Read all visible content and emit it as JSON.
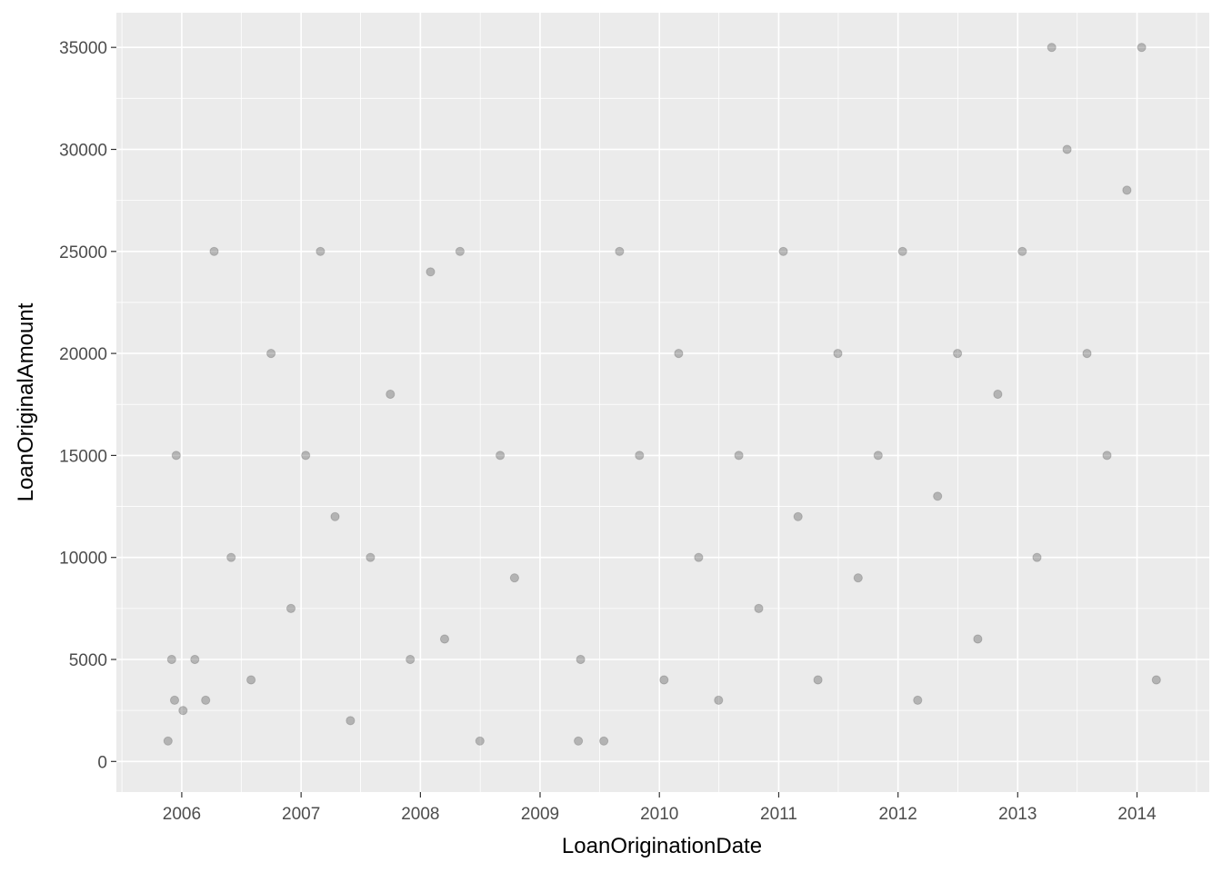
{
  "chart_data": {
    "type": "scatter",
    "title": "",
    "xlabel": "LoanOriginationDate",
    "ylabel": "LoanOriginalAmount",
    "x_type": "date",
    "xlim": [
      "2005-06-15",
      "2014-08-10"
    ],
    "ylim": [
      -1500,
      36700
    ],
    "x_ticks": [
      "2006",
      "2007",
      "2008",
      "2009",
      "2010",
      "2011",
      "2012",
      "2013",
      "2014"
    ],
    "y_ticks": [
      0,
      5000,
      10000,
      15000,
      20000,
      25000,
      30000,
      35000
    ],
    "point_color": "#000000",
    "point_alpha": 0.08,
    "background": "#ebebeb",
    "grid": true,
    "legend": "none",
    "series": [
      {
        "x": [
          "2005-11-20",
          "2005-12-01",
          "2005-12-10",
          "2005-12-15",
          "2006-01-05",
          "2006-02-10",
          "2006-03-15",
          "2006-04-10",
          "2006-06-01",
          "2006-08-01",
          "2006-10-01",
          "2006-12-01",
          "2007-01-15",
          "2007-03-01",
          "2007-04-15",
          "2007-06-01",
          "2007-08-01",
          "2007-10-01",
          "2007-12-01",
          "2008-02-01",
          "2008-03-15",
          "2008-05-01",
          "2008-07-01",
          "2008-09-01",
          "2008-10-15",
          "2009-04-28",
          "2009-05-05",
          "2009-07-15",
          "2009-09-01",
          "2009-11-01",
          "2010-01-15",
          "2010-03-01",
          "2010-05-01",
          "2010-07-01",
          "2010-09-01",
          "2010-11-01",
          "2011-01-15",
          "2011-03-01",
          "2011-05-01",
          "2011-07-01",
          "2011-09-01",
          "2011-11-01",
          "2012-01-15",
          "2012-03-01",
          "2012-05-01",
          "2012-07-01",
          "2012-09-01",
          "2012-11-01",
          "2013-01-15",
          "2013-03-01",
          "2013-04-15",
          "2013-06-01",
          "2013-08-01",
          "2013-10-01",
          "2013-12-01",
          "2014-01-15",
          "2014-03-01"
        ],
        "y": [
          1000,
          5000,
          3000,
          15000,
          2500,
          5000,
          3000,
          25000,
          10000,
          4000,
          20000,
          7500,
          15000,
          25000,
          12000,
          2000,
          10000,
          18000,
          5000,
          24000,
          6000,
          25000,
          1000,
          15000,
          9000,
          1000,
          5000,
          1000,
          25000,
          15000,
          4000,
          20000,
          10000,
          3000,
          15000,
          7500,
          25000,
          12000,
          4000,
          20000,
          9000,
          15000,
          25000,
          3000,
          13000,
          20000,
          6000,
          18000,
          25000,
          10000,
          35000,
          30000,
          20000,
          15000,
          28000,
          35000,
          4000
        ]
      }
    ]
  }
}
